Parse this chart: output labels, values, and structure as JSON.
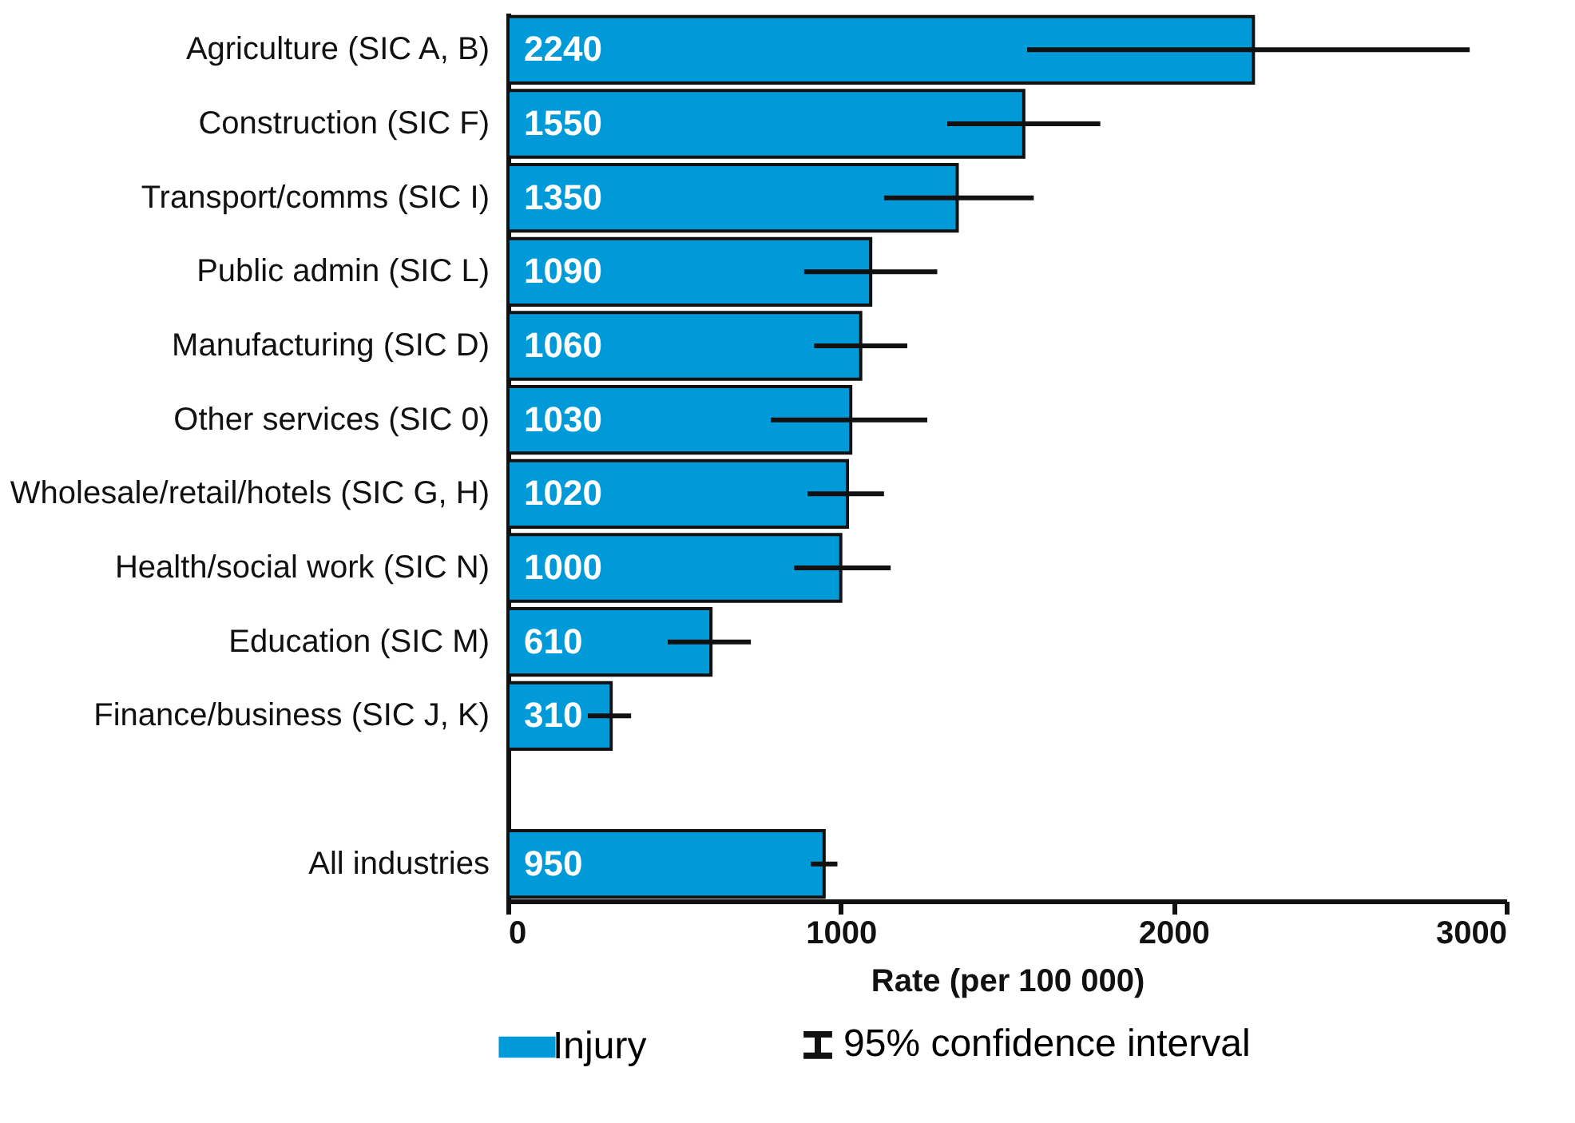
{
  "chart_data": {
    "type": "bar",
    "orientation": "horizontal",
    "xlabel": "Rate (per 100 000)",
    "categories": [
      "Agriculture (SIC A, B)",
      "Construction (SIC F)",
      "Transport/comms (SIC I)",
      "Public admin (SIC L)",
      "Manufacturing (SIC D)",
      "Other services (SIC 0)",
      "Wholesale/retail/hotels (SIC G, H)",
      "Health/social work (SIC N)",
      "Education (SIC M)",
      "Finance/business (SIC J, K)",
      null,
      "All industries"
    ],
    "series": [
      {
        "name": "Injury",
        "color": "#009ad9",
        "values": [
          2240,
          1550,
          1350,
          1090,
          1060,
          1030,
          1020,
          1000,
          610,
          310,
          null,
          950
        ],
        "errors": [
          [
            1560,
            2890
          ],
          [
            1320,
            1780
          ],
          [
            1130,
            1580
          ],
          [
            890,
            1290
          ],
          [
            920,
            1200
          ],
          [
            790,
            1260
          ],
          [
            900,
            1130
          ],
          [
            860,
            1150
          ],
          [
            480,
            730
          ],
          [
            240,
            370
          ],
          null,
          [
            910,
            990
          ]
        ]
      }
    ],
    "xlim": [
      0,
      3000
    ],
    "xticks": [
      0,
      1000,
      2000,
      3000
    ],
    "data_labels": true,
    "legend": "bottom",
    "annotations": [
      "95% confidence interval"
    ]
  }
}
